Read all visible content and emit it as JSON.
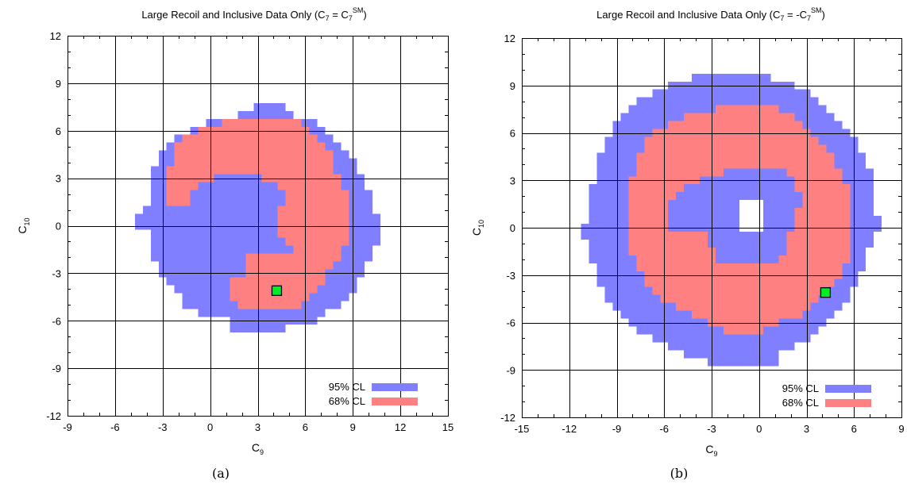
{
  "colors": {
    "cl95": "#7f7fff",
    "cl68": "#ff8080",
    "sm_point": "#00ee22",
    "grid": "#000000"
  },
  "chart_data": [
    {
      "type": "heatmap",
      "panel_label": "(a)",
      "title": {
        "main": "Large Recoil and Inclusive Data Only (C",
        "sub": "7",
        "mid": " = C",
        "sub2": "7",
        "sup": "SM",
        "end": ")"
      },
      "xlabel": {
        "main": "C",
        "sub": "9"
      },
      "ylabel": {
        "main": "C",
        "sub": "10"
      },
      "xlim": [
        -9,
        15
      ],
      "ylim": [
        -12,
        12
      ],
      "xticks": [
        "-9",
        "-6",
        "-3",
        "0",
        "3",
        "6",
        "9",
        "12",
        "15"
      ],
      "yticks": [
        "-12",
        "-9",
        "-6",
        "-3",
        "0",
        "3",
        "6",
        "9",
        "12"
      ],
      "grid": true,
      "legend": {
        "position": "bottom-right",
        "entries": [
          "95% CL",
          "68% CL"
        ]
      },
      "sm_point": {
        "x": 4.2,
        "y": -4.1
      },
      "regions": {
        "cl95": [
          [
            3,
            7.5,
            4.5
          ],
          [
            2,
            7.0,
            5.0
          ],
          [
            0,
            6.5,
            6.5
          ],
          [
            -1,
            6.0,
            7.0
          ],
          [
            -2,
            5.5,
            7.5
          ],
          [
            -2.5,
            5.0,
            8.0
          ],
          [
            -3,
            4.5,
            8.5
          ],
          [
            -3,
            4.0,
            9.0
          ],
          [
            -3.5,
            3.5,
            9.0
          ],
          [
            -3.5,
            3.0,
            9.5
          ],
          [
            -3.5,
            2.5,
            9.5
          ],
          [
            -3.5,
            2.0,
            10.0
          ],
          [
            -3.5,
            1.5,
            10.0
          ],
          [
            -4,
            1.0,
            10.0
          ],
          [
            -4.5,
            0.5,
            10.5
          ],
          [
            -4.5,
            0.0,
            10.5
          ],
          [
            -3.5,
            -0.5,
            10.5
          ],
          [
            -3.5,
            -1.0,
            10.5
          ],
          [
            -3.5,
            -1.5,
            10.0
          ],
          [
            -3.5,
            -2.0,
            10.0
          ],
          [
            -3,
            -2.5,
            9.5
          ],
          [
            -3,
            -3.0,
            9.5
          ],
          [
            -2.5,
            -3.5,
            9.0
          ],
          [
            -2,
            -4.0,
            9.0
          ],
          [
            -1.5,
            -4.5,
            8.5
          ],
          [
            -1.5,
            -5.0,
            8.0
          ],
          [
            -0.5,
            -5.5,
            7.0
          ],
          [
            1.5,
            -6.0,
            6.5
          ],
          [
            1.5,
            -6.5,
            4.5
          ]
        ],
        "cl68": [
          [
            1,
            6.5,
            5.5
          ],
          [
            -0.5,
            6.0,
            6.0
          ],
          [
            -1.5,
            5.5,
            6.5
          ],
          [
            -2,
            5.0,
            7.0
          ],
          [
            -2,
            4.5,
            7.5
          ],
          [
            -2,
            4.0,
            7.5
          ],
          [
            -2.5,
            3.5,
            7.5
          ],
          [
            -2.5,
            3.0,
            8.0
          ],
          [
            -2.5,
            2.5,
            8.0
          ],
          [
            -2.5,
            2.0,
            8.5
          ],
          [
            -2.5,
            1.5,
            8.5
          ],
          [
            -1.5,
            1.0,
            8.5
          ],
          [
            3.5,
            0.5,
            8.5
          ],
          [
            4,
            0.0,
            8.5
          ],
          [
            4,
            -0.5,
            8.5
          ],
          [
            3.5,
            -1.0,
            8.5
          ],
          [
            3.5,
            -1.5,
            8.0
          ],
          [
            2.5,
            -2.0,
            8.0
          ],
          [
            2.5,
            -2.5,
            7.5
          ],
          [
            2.5,
            -3.0,
            7.0
          ],
          [
            1.5,
            -3.5,
            7.0
          ],
          [
            1.5,
            -4.0,
            6.5
          ],
          [
            1.5,
            -4.5,
            6.0
          ],
          [
            2,
            -5.0,
            5.5
          ]
        ],
        "inner95": [
          [
            0.5,
            3.0,
            3.0
          ],
          [
            -0.5,
            2.5,
            4.0
          ],
          [
            -1,
            2.0,
            4.5
          ],
          [
            -1,
            1.5,
            4.5
          ],
          [
            -1.5,
            1.0,
            4.0
          ],
          [
            -1.5,
            0.5,
            4.0
          ],
          [
            -1.5,
            0.0,
            4.0
          ],
          [
            -1.5,
            -0.5,
            4.0
          ],
          [
            -0.5,
            -1.0,
            4.5
          ],
          [
            -0.5,
            -1.5,
            5.0
          ]
        ],
        "hole": []
      }
    },
    {
      "type": "heatmap",
      "panel_label": "(b)",
      "title": {
        "main": "Large Recoil and Inclusive Data Only (C",
        "sub": "7",
        "mid": " = -C",
        "sub2": "7",
        "sup": "SM",
        "end": ")"
      },
      "xlabel": {
        "main": "C",
        "sub": "9"
      },
      "ylabel": {
        "main": "C",
        "sub": "10"
      },
      "xlim": [
        -15,
        9
      ],
      "ylim": [
        -12,
        12
      ],
      "xticks": [
        "-15",
        "-12",
        "-9",
        "-6",
        "-3",
        "0",
        "3",
        "6",
        "9"
      ],
      "yticks": [
        "-12",
        "-9",
        "-6",
        "-3",
        "0",
        "3",
        "6",
        "9",
        "12"
      ],
      "grid": true,
      "legend": {
        "position": "bottom-right",
        "entries": [
          "95% CL",
          "68% CL"
        ]
      },
      "sm_point": {
        "x": 4.2,
        "y": -4.1
      },
      "regions": {
        "cl95": [
          [
            -4,
            9.5,
            0.5
          ],
          [
            -5.5,
            9.0,
            2.0
          ],
          [
            -6.5,
            8.5,
            3.0
          ],
          [
            -7.5,
            8.0,
            3.5
          ],
          [
            -8,
            7.5,
            4.0
          ],
          [
            -8.5,
            7.0,
            4.5
          ],
          [
            -9,
            6.5,
            5.0
          ],
          [
            -9,
            6.0,
            5.5
          ],
          [
            -9.5,
            5.5,
            6.0
          ],
          [
            -9.5,
            5.0,
            6.0
          ],
          [
            -10,
            4.5,
            6.5
          ],
          [
            -10,
            4.0,
            6.5
          ],
          [
            -10,
            3.5,
            7.0
          ],
          [
            -10,
            3.0,
            7.0
          ],
          [
            -10.5,
            2.5,
            7.0
          ],
          [
            -10.5,
            2.0,
            7.0
          ],
          [
            -10.5,
            1.5,
            7.0
          ],
          [
            -10.5,
            1.0,
            7.0
          ],
          [
            -10.5,
            0.5,
            7.5
          ],
          [
            -11,
            0.0,
            7.5
          ],
          [
            -11,
            -0.5,
            7.0
          ],
          [
            -10.5,
            -1.0,
            7.0
          ],
          [
            -10.5,
            -1.5,
            6.5
          ],
          [
            -10.5,
            -2.0,
            6.5
          ],
          [
            -10,
            -2.5,
            6.5
          ],
          [
            -10,
            -3.0,
            6.0
          ],
          [
            -10,
            -3.5,
            6.0
          ],
          [
            -9.5,
            -4.0,
            5.5
          ],
          [
            -9.5,
            -4.5,
            5.5
          ],
          [
            -9,
            -5.0,
            5.0
          ],
          [
            -8.5,
            -5.5,
            4.5
          ],
          [
            -8,
            -6.0,
            4.0
          ],
          [
            -7.5,
            -6.5,
            3.5
          ],
          [
            -6.5,
            -7.0,
            3.0
          ],
          [
            -5.5,
            -7.5,
            2.0
          ],
          [
            -4.5,
            -8.0,
            1.0
          ],
          [
            -3,
            -8.5,
            1.0
          ]
        ],
        "cl68": [
          [
            -2.5,
            7.5,
            1.0
          ],
          [
            -4.5,
            7.0,
            2.0
          ],
          [
            -5.5,
            6.5,
            2.5
          ],
          [
            -6.5,
            6.0,
            3.0
          ],
          [
            -7,
            5.5,
            3.5
          ],
          [
            -7,
            5.0,
            4.0
          ],
          [
            -7.5,
            4.5,
            4.5
          ],
          [
            -7.5,
            4.0,
            4.5
          ],
          [
            -7.5,
            3.5,
            5.0
          ],
          [
            -8,
            3.0,
            5.0
          ],
          [
            -8,
            2.5,
            5.5
          ],
          [
            -8,
            2.0,
            5.5
          ],
          [
            -8,
            1.5,
            5.5
          ],
          [
            -8,
            1.0,
            5.5
          ],
          [
            -8,
            0.5,
            5.5
          ],
          [
            -8,
            0.0,
            5.5
          ],
          [
            -8,
            -0.5,
            5.5
          ],
          [
            -8,
            -1.0,
            5.5
          ],
          [
            -8,
            -1.5,
            5.5
          ],
          [
            -7.5,
            -2.0,
            5.5
          ],
          [
            -7.5,
            -2.5,
            5.0
          ],
          [
            -7,
            -3.0,
            5.0
          ],
          [
            -7,
            -3.5,
            4.5
          ],
          [
            -6.5,
            -4.0,
            4.0
          ],
          [
            -6,
            -4.5,
            3.5
          ],
          [
            -5,
            -5.0,
            3.0
          ],
          [
            -4,
            -5.5,
            2.5
          ],
          [
            -3,
            -6.0,
            1.0
          ],
          [
            -2,
            -6.5,
            0
          ]
        ],
        "inner95": [
          [
            -2,
            3.5,
            1.5
          ],
          [
            -3.5,
            3.0,
            2.0
          ],
          [
            -4.5,
            2.5,
            2.0
          ],
          [
            -5,
            2.0,
            2.5
          ],
          [
            -5.5,
            1.5,
            2.5
          ],
          [
            -5.5,
            1.0,
            2.0
          ],
          [
            -5.5,
            0.5,
            2.0
          ],
          [
            -5.5,
            0.0,
            2.0
          ],
          [
            -3,
            -0.5,
            1.5
          ],
          [
            -3,
            -1.0,
            1.5
          ],
          [
            -2.5,
            -1.5,
            1.5
          ],
          [
            -2.5,
            -2.0,
            1.0
          ]
        ],
        "hole": [
          [
            -1,
            1.5,
            0
          ],
          [
            -1,
            1.0,
            0
          ],
          [
            -1,
            0.5,
            0
          ],
          [
            -1,
            0.0,
            0
          ]
        ]
      }
    }
  ]
}
